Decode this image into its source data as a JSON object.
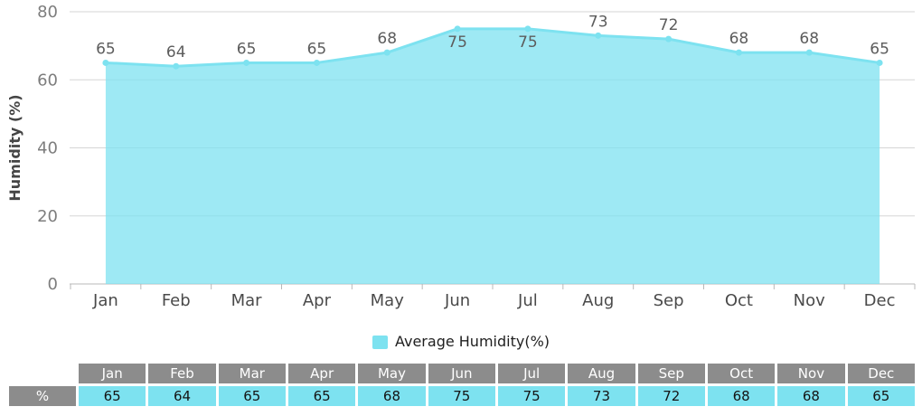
{
  "chart_data": {
    "type": "area",
    "categories": [
      "Jan",
      "Feb",
      "Mar",
      "Apr",
      "May",
      "Jun",
      "Jul",
      "Aug",
      "Sep",
      "Oct",
      "Nov",
      "Dec"
    ],
    "series": [
      {
        "name": "Average Humidity(%)",
        "values": [
          65,
          64,
          65,
          65,
          68,
          75,
          75,
          73,
          72,
          68,
          68,
          65
        ]
      }
    ],
    "title": "",
    "xlabel": "",
    "ylabel": "Humidity (%)",
    "ylim": [
      0,
      80
    ],
    "yticks": [
      0,
      20,
      40,
      60,
      80
    ],
    "grid": true,
    "legend_position": "bottom",
    "markers": true,
    "point_labels": [
      65,
      64,
      65,
      65,
      68,
      75,
      75,
      73,
      72,
      68,
      68,
      65
    ]
  },
  "legend": {
    "label": "Average Humidity(%)"
  },
  "table": {
    "corner_label": "",
    "row_label": "%",
    "columns": [
      "Jan",
      "Feb",
      "Mar",
      "Apr",
      "May",
      "Jun",
      "Jul",
      "Aug",
      "Sep",
      "Oct",
      "Nov",
      "Dec"
    ],
    "values": [
      "65",
      "64",
      "65",
      "65",
      "68",
      "75",
      "75",
      "73",
      "72",
      "68",
      "68",
      "65"
    ]
  },
  "colors": {
    "accent": "#7de2f0",
    "area_fill": "rgba(125,226,240,0.75)",
    "grid": "#d6d6d6",
    "axis": "#b8b8b8",
    "tick_text": "#7d7d7d",
    "month_text": "#4a4a4a",
    "data_label": "#5c5c5c",
    "axis_title": "#454545",
    "legend_text": "#1f1f1f",
    "table_header_bg": "#8c8c8c",
    "table_header_text": "#ffffff",
    "table_cell_bg": "#7de2f0",
    "table_cell_text": "#141414"
  }
}
